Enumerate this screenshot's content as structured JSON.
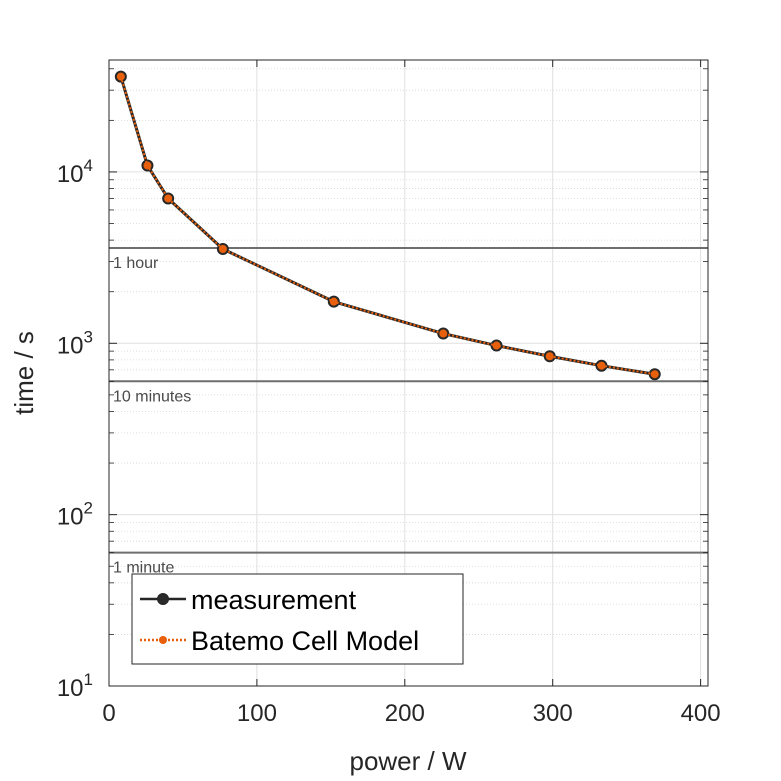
{
  "chart_data": {
    "type": "line",
    "xlabel": "power / W",
    "ylabel": "time / s",
    "xlim": [
      0,
      405
    ],
    "ylim": [
      10,
      45000
    ],
    "yscale": "log",
    "grid": true,
    "x_ticks": [
      "0",
      "100",
      "200",
      "300",
      "400"
    ],
    "y_ticks": [
      {
        "base": "10",
        "exp": "1"
      },
      {
        "base": "10",
        "exp": "2"
      },
      {
        "base": "10",
        "exp": "3"
      },
      {
        "base": "10",
        "exp": "4"
      }
    ],
    "reference_lines": [
      {
        "label": "1 hour",
        "value": 3600
      },
      {
        "label": "10 minutes",
        "value": 600
      },
      {
        "label": "1 minute",
        "value": 60
      }
    ],
    "legend_position": "bottom-left",
    "series": [
      {
        "name": "measurement",
        "color": "#262626",
        "marker_color": "#2a2a2a",
        "line_style": "solid",
        "x": [
          8,
          26,
          40,
          77,
          152,
          226,
          262,
          298,
          333,
          369
        ],
        "y": [
          36000,
          10900,
          7000,
          3550,
          1750,
          1140,
          970,
          840,
          740,
          660
        ]
      },
      {
        "name": "Batemo Cell Model",
        "color": "#e8600c",
        "marker_color": "#e8600c",
        "line_style": "dotted",
        "x": [
          8,
          26,
          40,
          77,
          152,
          226,
          262,
          298,
          333,
          369
        ],
        "y": [
          36000,
          10900,
          7000,
          3550,
          1750,
          1140,
          970,
          840,
          740,
          660
        ]
      }
    ]
  }
}
